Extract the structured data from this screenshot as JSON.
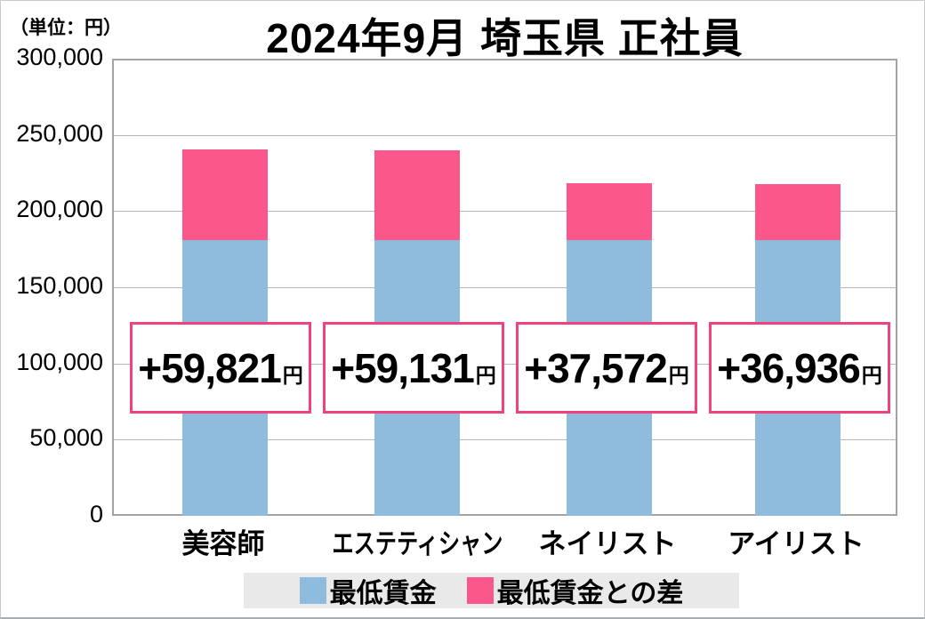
{
  "title": "2024年9月 埼玉県 正社員",
  "unit_label": "（単位：円）",
  "colors": {
    "min_wage_blue": "#8fbcdc",
    "diff_pink": "#fa578a",
    "box_border_pink": "#f0437e",
    "grid_gray": "#b5b5b5",
    "legend_bg": "#e9e9e9"
  },
  "chart_data": {
    "type": "bar",
    "stacked": true,
    "title": "2024年9月 埼玉県 正社員",
    "unit": "（単位：円）",
    "categories": [
      "美容師",
      "エステティシャン",
      "ネイリスト",
      "アイリスト"
    ],
    "series": [
      {
        "name": "最低賃金",
        "color_key": "min_wage_blue",
        "values": [
          180928,
          180928,
          180928,
          180928
        ]
      },
      {
        "name": "最低賃金との差",
        "color_key": "diff_pink",
        "values": [
          59821,
          59131,
          37572,
          36936
        ]
      }
    ],
    "totals": [
      240749,
      240059,
      218500,
      217864
    ],
    "diff_labels": [
      "+59,821",
      "+59,131",
      "+37,572",
      "+36,936"
    ],
    "diff_unit": "円",
    "ylim": [
      0,
      300000
    ],
    "ytick_step": 50000,
    "ytick_labels": [
      "0",
      "50,000",
      "100,000",
      "150,000",
      "200,000",
      "250,000",
      "300,000"
    ],
    "grid": "horizontal",
    "legend_position": "bottom",
    "legend": [
      "最低賃金",
      "最低賃金との差"
    ]
  }
}
